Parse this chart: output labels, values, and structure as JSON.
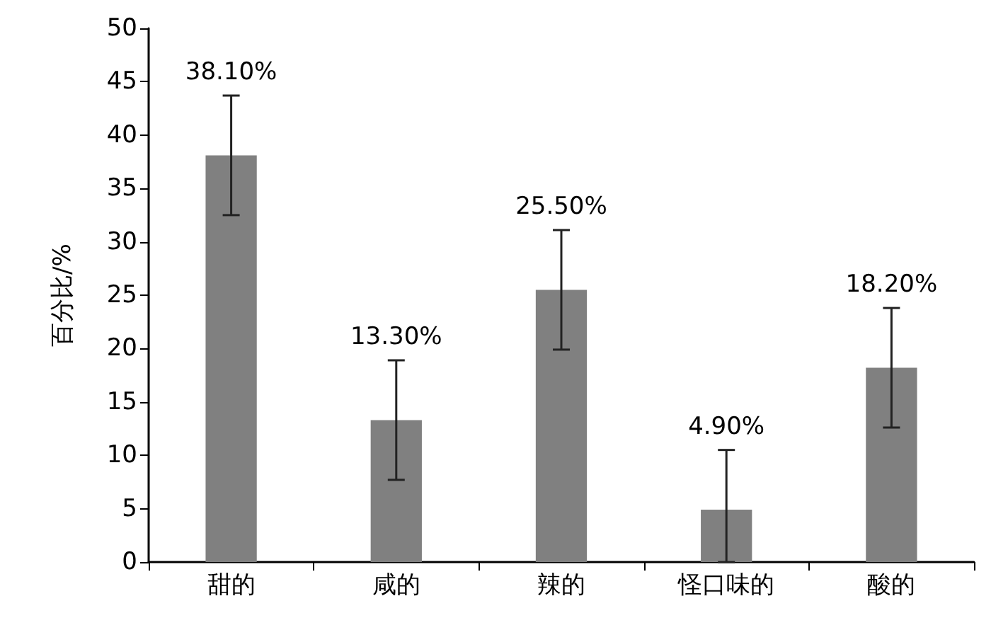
{
  "chart_data": {
    "type": "bar",
    "ylabel": "百分比/%",
    "categories": [
      "甜的",
      "咸的",
      "辣的",
      "怪口味的",
      "酸的"
    ],
    "values": [
      38.1,
      13.3,
      25.5,
      4.9,
      18.2
    ],
    "errors": [
      5.6,
      5.6,
      5.6,
      [
        0,
        10.5
      ],
      5.6
    ],
    "value_labels": [
      "38.10%",
      "13.30%",
      "25.50%",
      "4.90%",
      "18.20%"
    ],
    "color": "#808080",
    "ylim": [
      0,
      50
    ],
    "yticks": [
      0,
      5,
      10,
      15,
      20,
      25,
      30,
      35,
      40,
      45,
      50
    ],
    "grid": false
  }
}
